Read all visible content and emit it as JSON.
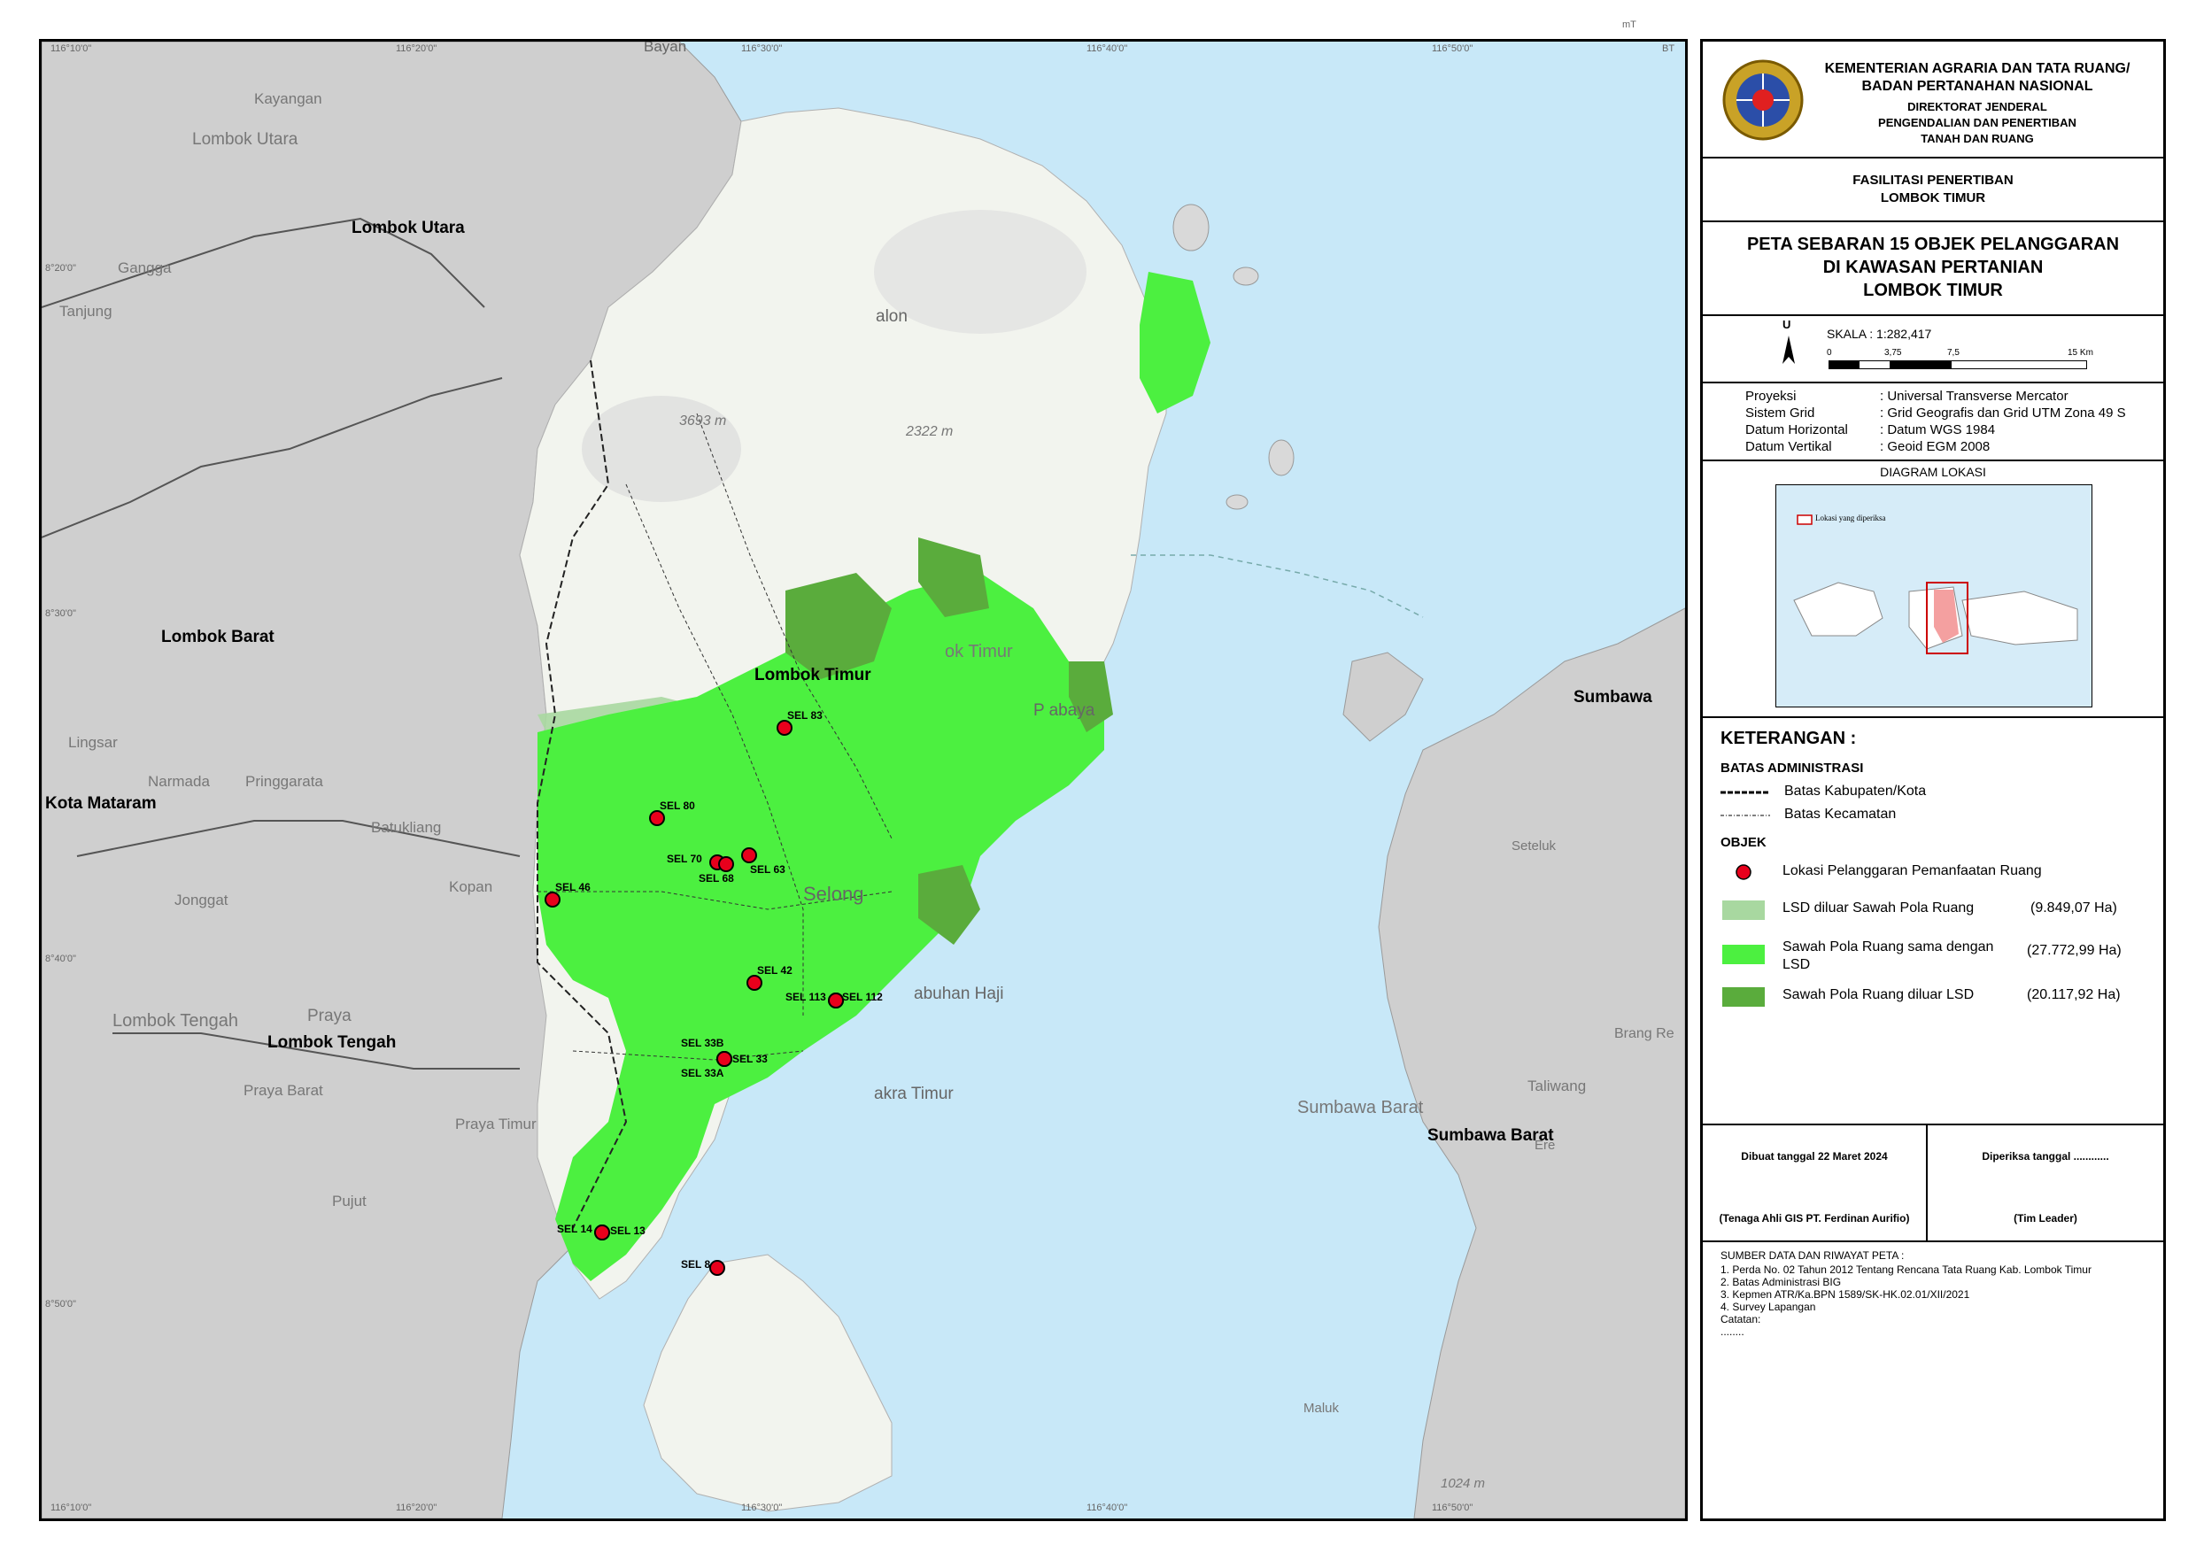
{
  "ticks": {
    "top": [
      "116°10'0\"",
      "116°20'0\"",
      "116°30'0\"",
      "116°40'0\"",
      "116°50'0\""
    ],
    "bottom": [
      "116°10'0\"",
      "116°20'0\"",
      "116°30'0\"",
      "116°40'0\"",
      "116°50'0\""
    ],
    "right_top": "BT",
    "corner": "mT",
    "left": [
      "8°20'0\"",
      "8°30'0\"",
      "8°40'0\"",
      "8°50'0\""
    ]
  },
  "regions": {
    "lombok_utara": "Lombok Utara",
    "lombok_utara_faint": "Lombok Utara",
    "lombok_barat": "Lombok Barat",
    "lombok_timur": "Lombok Timur",
    "lombok_timur_faint": "ok Timur",
    "lombok_tengah": "Lombok Tengah",
    "lombok_tengah_faint": "Lombok Tengah",
    "kota_mataram": "Kota Mataram",
    "sumbawa": "Sumbawa",
    "sumbawa_barat": "Sumbawa Barat",
    "sumbawa_barat_faint": "Sumbawa Barat"
  },
  "places": {
    "kayangan": "Kayangan",
    "gangga": "Gangga",
    "tanjung": "Tanjung",
    "lingsar": "Lingsar",
    "narmada": "Narmada",
    "pringgarata": "Pringgarata",
    "batukliang": "Batukliang",
    "jonggat": "Jonggat",
    "kopang": "Kopan",
    "praya": "Praya",
    "praya_barat": "Praya Barat",
    "praya_timur": "Praya Timur",
    "pujut": "Pujut",
    "selong": "Selong",
    "labuhan_haji": "abuhan Haji",
    "sakra_timur": "akra Timur",
    "pringgabaya": "P   abaya",
    "sembalun": "alon",
    "bayan": "Bayan",
    "seteluk": "Seteluk",
    "taliwang": "Taliwang",
    "brang_rea": "Brang Re",
    "maluk": "Maluk",
    "peak1": "3693 m",
    "peak2": "2322 m",
    "peak3": "1024 m",
    "ere": "Ere"
  },
  "points": [
    {
      "id": "SEL 83"
    },
    {
      "id": "SEL 80"
    },
    {
      "id": "SEL 70"
    },
    {
      "id": "SEL 68"
    },
    {
      "id": "SEL 63"
    },
    {
      "id": "SEL 46"
    },
    {
      "id": "SEL 42"
    },
    {
      "id": "SEL 113"
    },
    {
      "id": "SEL 112"
    },
    {
      "id": "SEL 33B"
    },
    {
      "id": "SEL 33"
    },
    {
      "id": "SEL 33A"
    },
    {
      "id": "SEL 14"
    },
    {
      "id": "SEL 13"
    },
    {
      "id": "SEL 8"
    }
  ],
  "panel": {
    "agency_line1": "KEMENTERIAN AGRARIA DAN TATA RUANG/",
    "agency_line2": "BADAN PERTANAHAN NASIONAL",
    "agency_line3": "DIREKTORAT JENDERAL",
    "agency_line4": "PENGENDALIAN DAN PENERTIBAN",
    "agency_line5": "TANAH DAN RUANG",
    "facility_line1": "FASILITASI PENERTIBAN",
    "facility_line2": "LOMBOK TIMUR",
    "title_line1": "PETA SEBARAN 15 OBJEK  PELANGGARAN",
    "title_line2": "DI KAWASAN PERTANIAN",
    "title_line3": "LOMBOK TIMUR",
    "north": "U",
    "scale_label": "SKALA :  1:282,417",
    "scale_ticks": [
      "0",
      "3,75",
      "7,5",
      "15 Km"
    ],
    "proj": [
      {
        "k": "Proyeksi",
        "v": ": Universal Transverse Mercator"
      },
      {
        "k": "Sistem Grid",
        "v": ": Grid Geografis dan Grid UTM Zona 49 S"
      },
      {
        "k": "Datum Horizontal",
        "v": ": Datum WGS 1984"
      },
      {
        "k": "Datum Vertikal",
        "v": ": Geoid EGM 2008"
      }
    ],
    "diagram_title": "DIAGRAM LOKASI",
    "diagram_legend": "Lokasi yang diperiksa",
    "keterangan": "KETERANGAN :",
    "batas_title": "BATAS ADMINISTRASI",
    "batas_kab": "Batas Kabupaten/Kota",
    "batas_kec": "Batas Kecamatan",
    "objek_title": "OBJEK",
    "lokasi": "Lokasi Pelanggaran Pemanfaatan Ruang",
    "lsd_luar": "LSD diluar Sawah Pola Ruang",
    "lsd_luar_val": "(9.849,07 Ha)",
    "sawah_sama_1": "Sawah Pola Ruang sama dengan",
    "sawah_sama_2": "LSD",
    "sawah_sama_val": "(27.772,99 Ha)",
    "sawah_luar": "Sawah Pola Ruang diluar LSD",
    "sawah_luar_val": "(20.117,92 Ha)",
    "dibuat": "Dibuat tanggal 22 Maret 2024",
    "diperiksa": "Diperiksa tanggal ............",
    "tenaga": "(Tenaga Ahli GIS PT. Ferdinan Aurifio)",
    "tim": "(Tim Leader)",
    "sumber_title": "SUMBER DATA DAN RIWAYAT PETA :",
    "sumber": [
      "1. Perda No. 02 Tahun 2012 Tentang Rencana Tata Ruang Kab. Lombok Timur",
      "2. Batas Administrasi BIG",
      "3. Kepmen ATR/Ka.BPN 1589/SK-HK.02.01/XII/2021",
      "4. Survey Lapangan",
      "Catatan:",
      "........"
    ]
  },
  "colors": {
    "sea": "#c8e8f8",
    "land_other": "#cfcfcf",
    "land_lotim": "#f2f4ee",
    "lsd_luar": "#a8d8a0",
    "sawah_sama": "#4cf040",
    "sawah_luar": "#5aac3c",
    "point": "#e8001c"
  }
}
